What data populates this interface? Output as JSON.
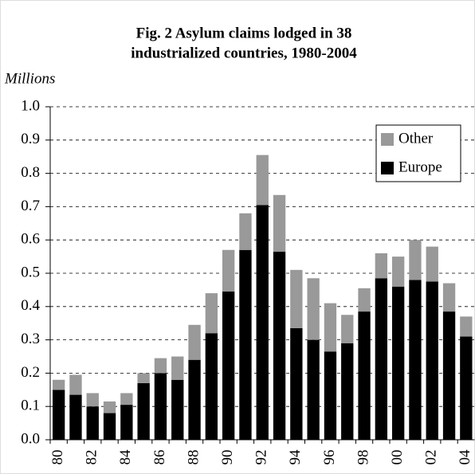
{
  "chart_data": {
    "type": "stacked_bar",
    "title": [
      "Fig. 2  Asylum claims lodged in 38",
      "industrialized countries, 1980-2004"
    ],
    "y_label": "Millions",
    "categories": [
      "80",
      null,
      "82",
      null,
      "84",
      null,
      "86",
      null,
      "88",
      null,
      "90",
      null,
      "92",
      null,
      "94",
      null,
      "96",
      null,
      "98",
      null,
      "00",
      null,
      "02",
      null,
      "04"
    ],
    "series": [
      {
        "name": "Europe",
        "color": "#000000",
        "values": [
          0.15,
          0.135,
          0.1,
          0.08,
          0.105,
          0.17,
          0.2,
          0.18,
          0.24,
          0.32,
          0.445,
          0.57,
          0.705,
          0.565,
          0.335,
          0.3,
          0.265,
          0.29,
          0.385,
          0.485,
          0.46,
          0.48,
          0.475,
          0.385,
          0.31
        ]
      },
      {
        "name": "Other",
        "color": "#999999",
        "values": [
          0.03,
          0.06,
          0.04,
          0.035,
          0.035,
          0.03,
          0.045,
          0.07,
          0.105,
          0.12,
          0.125,
          0.11,
          0.15,
          0.17,
          0.175,
          0.185,
          0.145,
          0.085,
          0.07,
          0.075,
          0.09,
          0.12,
          0.105,
          0.085,
          0.06
        ]
      }
    ],
    "ylim": [
      0,
      1
    ],
    "yticks": [
      {
        "value": 0,
        "label": "0.0"
      },
      0.1,
      0.2,
      0.3,
      0.4,
      0.5,
      0.6,
      0.7,
      0.8,
      0.9,
      {
        "value": 1,
        "label": "1.0"
      }
    ],
    "grid": true,
    "legend": "top-right"
  }
}
